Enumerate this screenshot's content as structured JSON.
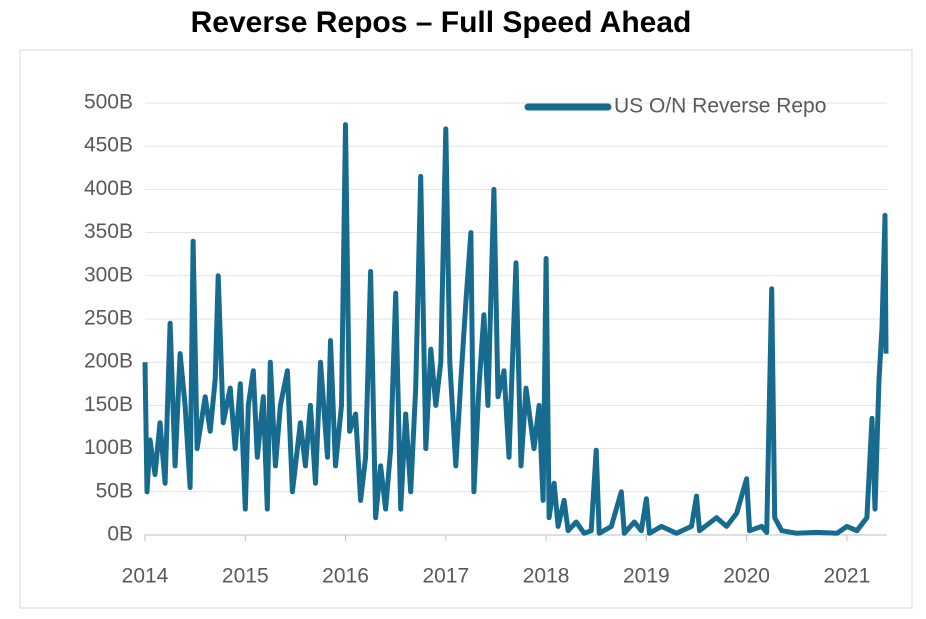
{
  "chart_data": {
    "type": "line",
    "title": "Reverse Repos – Full Speed Ahead",
    "xlim": [
      2014,
      2021.4
    ],
    "xticks": [
      2014,
      2015,
      2016,
      2017,
      2018,
      2019,
      2020,
      2021
    ],
    "ylim": [
      0,
      500
    ],
    "yticks": [
      {
        "value": 0,
        "label": "0B"
      },
      {
        "value": 50,
        "label": "50B"
      },
      {
        "value": 100,
        "label": "100B"
      },
      {
        "value": 150,
        "label": "150B"
      },
      {
        "value": 200,
        "label": "200B"
      },
      {
        "value": 250,
        "label": "250B"
      },
      {
        "value": 300,
        "label": "300B"
      },
      {
        "value": 350,
        "label": "350B"
      },
      {
        "value": 400,
        "label": "400B"
      },
      {
        "value": 450,
        "label": "450B"
      },
      {
        "value": 500,
        "label": "500B"
      }
    ],
    "grid": true,
    "legend": "top-right",
    "x": [
      2014.0,
      2014.02,
      2014.05,
      2014.1,
      2014.15,
      2014.2,
      2014.25,
      2014.3,
      2014.35,
      2014.4,
      2014.45,
      2014.48,
      2014.52,
      2014.6,
      2014.65,
      2014.7,
      2014.73,
      2014.78,
      2014.85,
      2014.9,
      2014.95,
      2015.0,
      2015.03,
      2015.08,
      2015.12,
      2015.18,
      2015.22,
      2015.25,
      2015.3,
      2015.35,
      2015.42,
      2015.47,
      2015.55,
      2015.6,
      2015.65,
      2015.7,
      2015.75,
      2015.82,
      2015.85,
      2015.9,
      2015.96,
      2016.0,
      2016.04,
      2016.1,
      2016.15,
      2016.2,
      2016.25,
      2016.3,
      2016.35,
      2016.4,
      2016.45,
      2016.5,
      2016.55,
      2016.6,
      2016.65,
      2016.7,
      2016.75,
      2016.8,
      2016.85,
      2016.9,
      2016.95,
      2017.0,
      2017.04,
      2017.1,
      2017.15,
      2017.2,
      2017.25,
      2017.28,
      2017.33,
      2017.38,
      2017.42,
      2017.48,
      2017.52,
      2017.58,
      2017.63,
      2017.7,
      2017.75,
      2017.8,
      2017.88,
      2017.93,
      2017.97,
      2018.0,
      2018.03,
      2018.08,
      2018.12,
      2018.18,
      2018.22,
      2018.3,
      2018.38,
      2018.45,
      2018.5,
      2018.53,
      2018.65,
      2018.75,
      2018.78,
      2018.88,
      2018.95,
      2019.0,
      2019.03,
      2019.15,
      2019.3,
      2019.45,
      2019.5,
      2019.53,
      2019.7,
      2019.8,
      2019.9,
      2020.0,
      2020.03,
      2020.15,
      2020.2,
      2020.25,
      2020.28,
      2020.35,
      2020.5,
      2020.7,
      2020.9,
      2021.0,
      2021.1,
      2021.2,
      2021.25,
      2021.28,
      2021.32,
      2021.35,
      2021.38,
      2021.39
    ],
    "series": [
      {
        "name": "US O/N Reverse Repo",
        "color": "#176b8f",
        "values": [
          200,
          50,
          110,
          70,
          130,
          60,
          245,
          80,
          210,
          150,
          55,
          340,
          100,
          160,
          120,
          180,
          300,
          130,
          170,
          100,
          175,
          30,
          150,
          190,
          90,
          160,
          30,
          200,
          80,
          150,
          190,
          50,
          130,
          80,
          150,
          60,
          200,
          90,
          225,
          80,
          150,
          475,
          120,
          140,
          40,
          90,
          305,
          20,
          80,
          30,
          100,
          280,
          30,
          140,
          50,
          170,
          415,
          100,
          215,
          150,
          200,
          470,
          200,
          80,
          180,
          270,
          350,
          50,
          170,
          255,
          150,
          400,
          160,
          190,
          90,
          315,
          80,
          170,
          100,
          150,
          40,
          320,
          20,
          60,
          10,
          40,
          5,
          15,
          2,
          5,
          98,
          2,
          10,
          50,
          2,
          15,
          5,
          42,
          2,
          10,
          2,
          10,
          45,
          5,
          20,
          10,
          25,
          65,
          5,
          10,
          3,
          285,
          20,
          5,
          2,
          3,
          2,
          10,
          5,
          20,
          135,
          30,
          180,
          240,
          370,
          210
        ]
      }
    ]
  }
}
